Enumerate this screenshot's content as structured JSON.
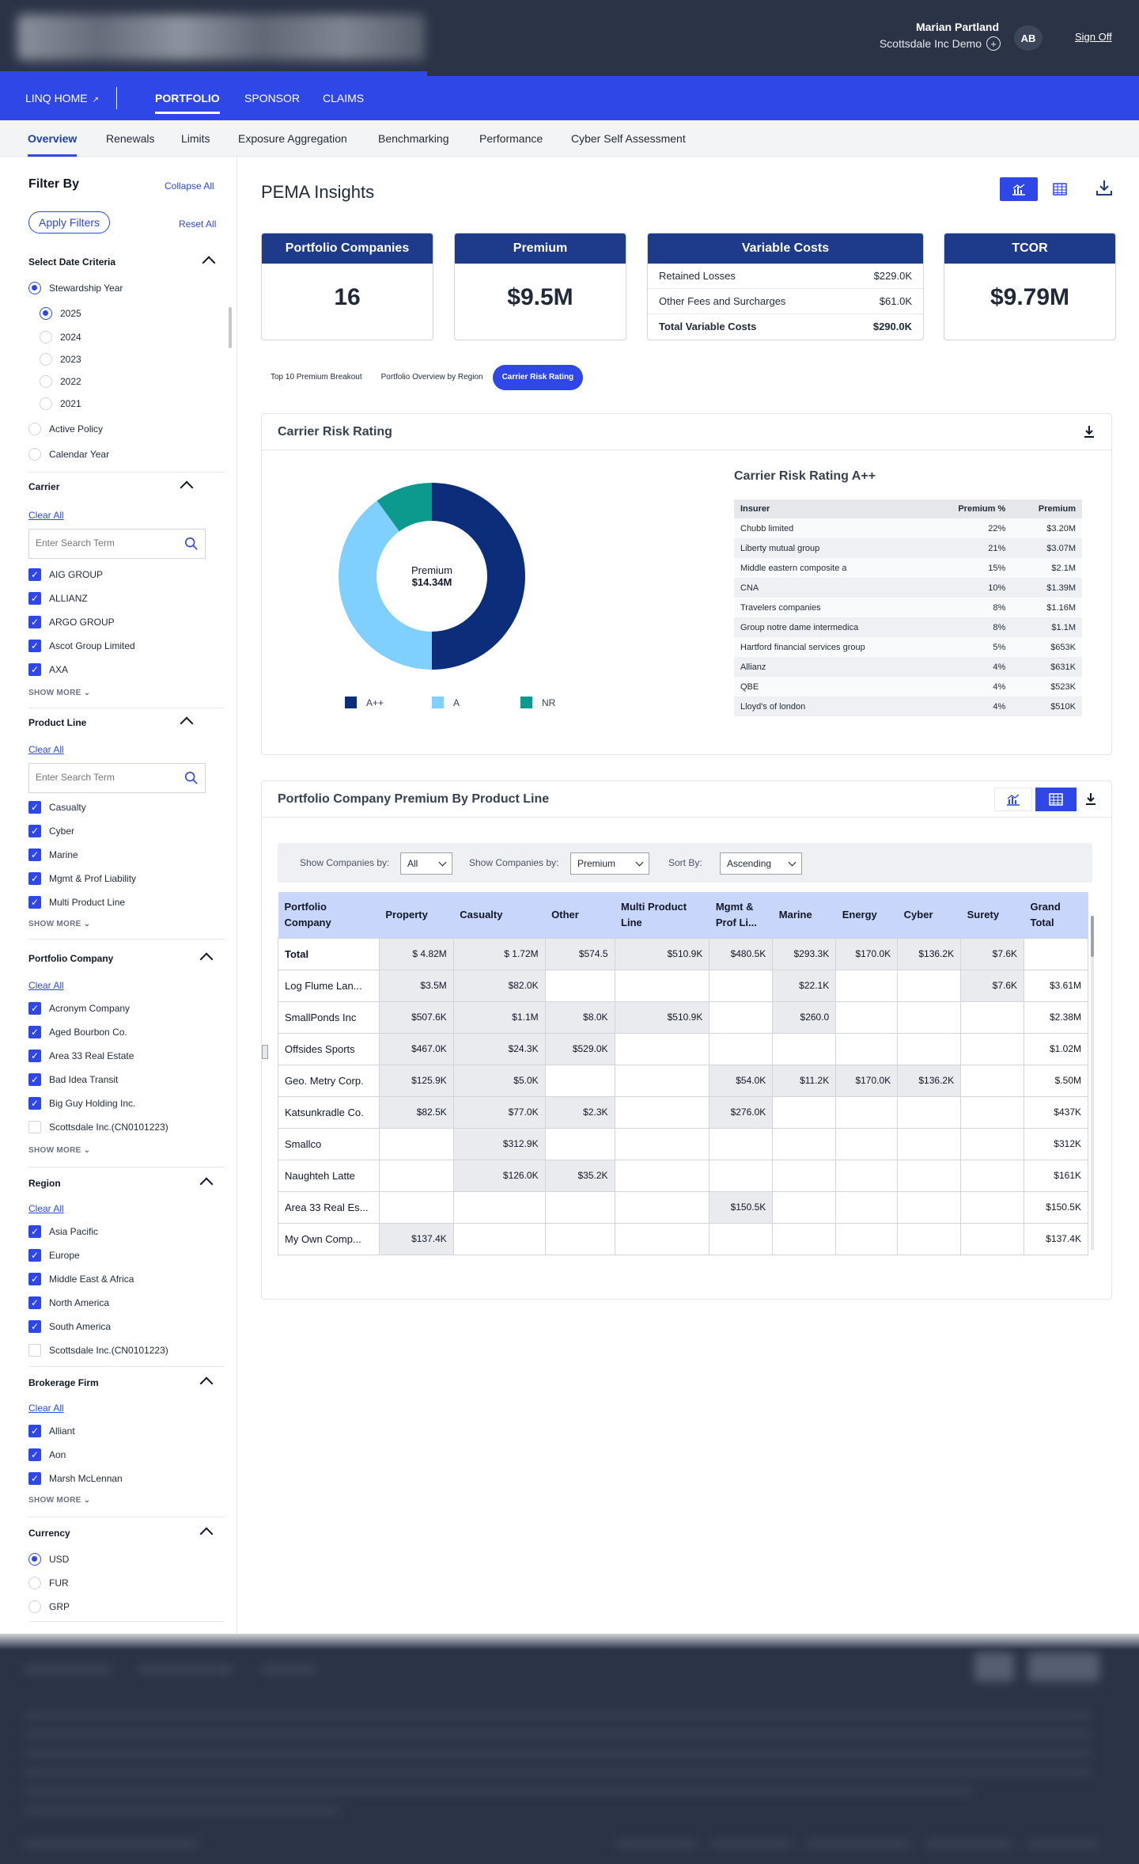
{
  "header": {
    "user_name": "Marian Partland",
    "org": "Scottsdale Inc Demo",
    "avatar": "AB",
    "sign_off": "Sign Off"
  },
  "nav": {
    "home": "LINQ HOME",
    "items": [
      "PORTFOLIO",
      "SPONSOR",
      "CLAIMS"
    ]
  },
  "subnav": [
    "Overview",
    "Renewals",
    "Limits",
    "Exposure Aggregation",
    "Benchmarking",
    "Performance",
    "Cyber Self Assessment"
  ],
  "sidebar": {
    "title": "Filter By",
    "collapse_all": "Collapse All",
    "apply": "Apply Filters",
    "reset": "Reset All",
    "date_criteria": {
      "title": "Select Date Criteria",
      "stewardship": "Stewardship Year",
      "years": [
        "2025",
        "2024",
        "2023",
        "2022",
        "2021"
      ],
      "active_policy": "Active Policy",
      "calendar_year": "Calendar Year"
    },
    "carrier": {
      "title": "Carrier",
      "clear": "Clear All",
      "placeholder": "Enter Search Term",
      "items": [
        "AIG GROUP",
        "ALLIANZ",
        "ARGO GROUP",
        "Ascot Group Limited",
        "AXA"
      ],
      "show_more": "SHOW MORE"
    },
    "product_line": {
      "title": "Product Line",
      "clear": "Clear All",
      "placeholder": "Enter Search Term",
      "items": [
        "Casualty",
        "Cyber",
        "Marine",
        "Mgmt & Prof Liability",
        "Multi Product Line"
      ],
      "show_more": "SHOW MORE"
    },
    "portfolio_company": {
      "title": "Portfolio Company",
      "clear": "Clear All",
      "items": [
        "Acronym Company",
        "Aged Bourbon Co.",
        "Area 33 Real Estate",
        "Bad Idea Transit",
        "Big Guy Holding Inc.",
        "Scottsdale Inc.(CN0101223)"
      ],
      "show_more": "SHOW MORE"
    },
    "region": {
      "title": "Region",
      "clear": "Clear All",
      "items": [
        "Asia Pacific",
        "Europe",
        "Middle East & Africa",
        "North America",
        "South America",
        "Scottsdale Inc.(CN0101223)"
      ]
    },
    "brokerage": {
      "title": "Brokerage Firm",
      "clear": "Clear All",
      "items": [
        "Alliant",
        "Aon",
        "Marsh McLennan"
      ],
      "show_more": "SHOW MORE"
    },
    "currency": {
      "title": "Currency",
      "items": [
        "USD",
        "FUR",
        "GRP"
      ]
    }
  },
  "main": {
    "title": "PEMA Insights",
    "kpis": {
      "companies_label": "Portfolio Companies",
      "companies_value": "16",
      "premium_label": "Premium",
      "premium_value": "$9.5M",
      "var_label": "Variable Costs",
      "var_rows": [
        {
          "label": "Retained Losses",
          "value": "$229.0K"
        },
        {
          "label": "Other Fees and Surcharges",
          "value": "$61.0K"
        },
        {
          "label": "Total Variable Costs",
          "value": "$290.0K"
        }
      ],
      "tcor_label": "TCOR",
      "tcor_value": "$9.79M"
    },
    "tabs": [
      "Top 10 Premium Breakout",
      "Portfolio Overview by Region",
      "Carrier Risk Rating"
    ]
  },
  "risk_card": {
    "title": "Carrier Risk Rating",
    "donut_label": "Premium",
    "donut_value": "$14.34M",
    "table_title": "Carrier Risk Rating A++",
    "columns": [
      "Insurer",
      "Premium %",
      "Premium"
    ],
    "rows": [
      [
        "Chubb limited",
        "22%",
        "$3.20M"
      ],
      [
        "Liberty mutual group",
        "21%",
        "$3.07M"
      ],
      [
        "Middle eastern composite a",
        "15%",
        "$2.1M"
      ],
      [
        "CNA",
        "10%",
        "$1.39M"
      ],
      [
        "Travelers companies",
        "8%",
        "$1.16M"
      ],
      [
        "Group notre dame intermedica",
        "8%",
        "$1.1M"
      ],
      [
        "Hartford financial services group",
        "5%",
        "$653K"
      ],
      [
        "Allianz",
        "4%",
        "$631K"
      ],
      [
        "QBE",
        "4%",
        "$523K"
      ],
      [
        "Lloyd's of london",
        "4%",
        "$510K"
      ]
    ]
  },
  "chart_data": {
    "type": "pie",
    "categories": [
      "A++",
      "A",
      "NR"
    ],
    "values": [
      50,
      40,
      10
    ],
    "colors": [
      "#0b2d7a",
      "#7fcfff",
      "#0c9a8e"
    ],
    "legend_position": "bottom"
  },
  "product_card": {
    "title": "Portfolio Company Premium By Product Line",
    "filters": {
      "show_by_label": "Show Companies by:",
      "show_by_value": "All",
      "show_by2_label": "Show Companies by:",
      "show_by2_value": "Premium",
      "sort_label": "Sort By:",
      "sort_value": "Ascending"
    },
    "columns": [
      "Portfolio Company",
      "Property",
      "Casualty",
      "Other",
      "Multi Product Line",
      "Mgmt & Prof Li...",
      "Marine",
      "Energy",
      "Cyber",
      "Surety",
      "Grand Total"
    ],
    "rows": [
      [
        "Total",
        "$ 4.82M",
        "$ 1.72M",
        "$574.5",
        "$510.9K",
        "$480.5K",
        "$293.3K",
        "$170.0K",
        "$136.2K",
        "$7.6K",
        ""
      ],
      [
        "Log Flume Lan...",
        "$3.5M",
        "$82.0K",
        "",
        "",
        "",
        "$22.1K",
        "",
        "",
        "$7.6K",
        "$3.61M"
      ],
      [
        "SmallPonds Inc",
        "$507.6K",
        "$1.1M",
        "$8.0K",
        "$510.9K",
        "",
        "$260.0",
        "",
        "",
        "",
        "$2.38M"
      ],
      [
        "Offsides Sports",
        "$467.0K",
        "$24.3K",
        "$529.0K",
        "",
        "",
        "",
        "",
        "",
        "",
        "$1.02M"
      ],
      [
        "Geo. Metry Corp.",
        "$125.9K",
        "$5.0K",
        "",
        "",
        "$54.0K",
        "$11.2K",
        "$170.0K",
        "$136.2K",
        "",
        "$.50M"
      ],
      [
        "Katsunkradle Co.",
        "$82.5K",
        "$77.0K",
        "$2.3K",
        "",
        "$276.0K",
        "",
        "",
        "",
        "",
        "$437K"
      ],
      [
        "Smallco",
        "",
        "$312.9K",
        "",
        "",
        "",
        "",
        "",
        "",
        "",
        "$312K"
      ],
      [
        "Naughteh Latte",
        "",
        "$126.0K",
        "$35.2K",
        "",
        "",
        "",
        "",
        "",
        "",
        "$161K"
      ],
      [
        "Area 33 Real Es...",
        "",
        "",
        "",
        "",
        "$150.5K",
        "",
        "",
        "",
        "",
        "$150.5K"
      ],
      [
        "My Own Comp...",
        "$137.4K",
        "",
        "",
        "",
        "",
        "",
        "",
        "",
        "",
        "$137.4K"
      ]
    ]
  }
}
